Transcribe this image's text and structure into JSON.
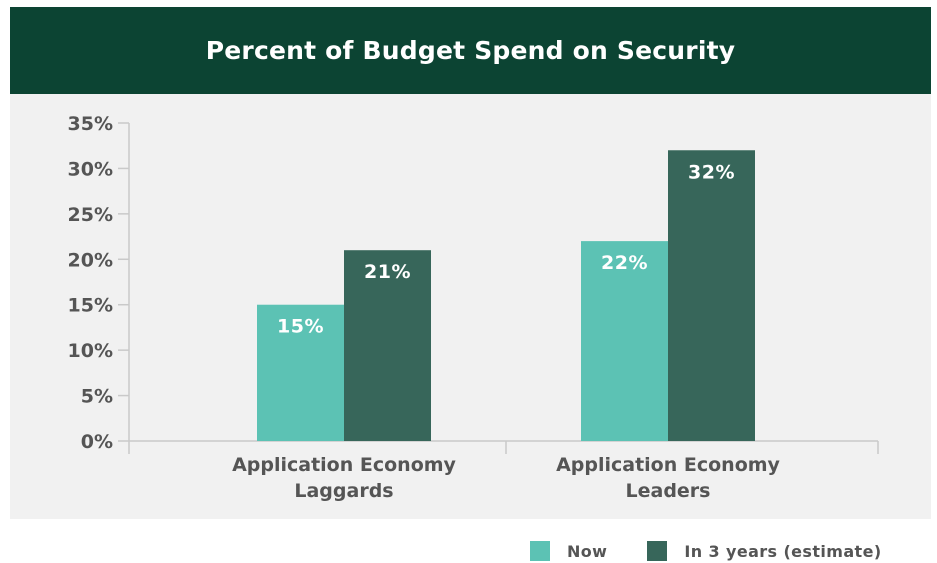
{
  "chart_data": {
    "type": "bar",
    "title": "Percent of Budget Spend on Security",
    "categories": [
      [
        "Application Economy",
        "Laggards"
      ],
      [
        "Application Economy",
        "Leaders"
      ]
    ],
    "series": [
      {
        "name": "Now",
        "values": [
          15,
          22
        ],
        "labels": [
          "15%",
          "22%"
        ],
        "color": "#5cc2b4"
      },
      {
        "name": "In 3 years (estimate)",
        "values": [
          21,
          32
        ],
        "labels": [
          "21%",
          "32%"
        ],
        "color": "#37665a"
      }
    ],
    "ylim": [
      0,
      35
    ],
    "yticks": [
      "0%",
      "5%",
      "10%",
      "15%",
      "20%",
      "25%",
      "30%",
      "35%"
    ],
    "legend_position": "bottom-right",
    "grid": false
  },
  "colors": {
    "header_bg": "#0c4433",
    "panel_bg": "#f1f1f1",
    "axis": "#c9c9c9",
    "tick_text": "#555555",
    "bar_label": "#ffffff"
  }
}
